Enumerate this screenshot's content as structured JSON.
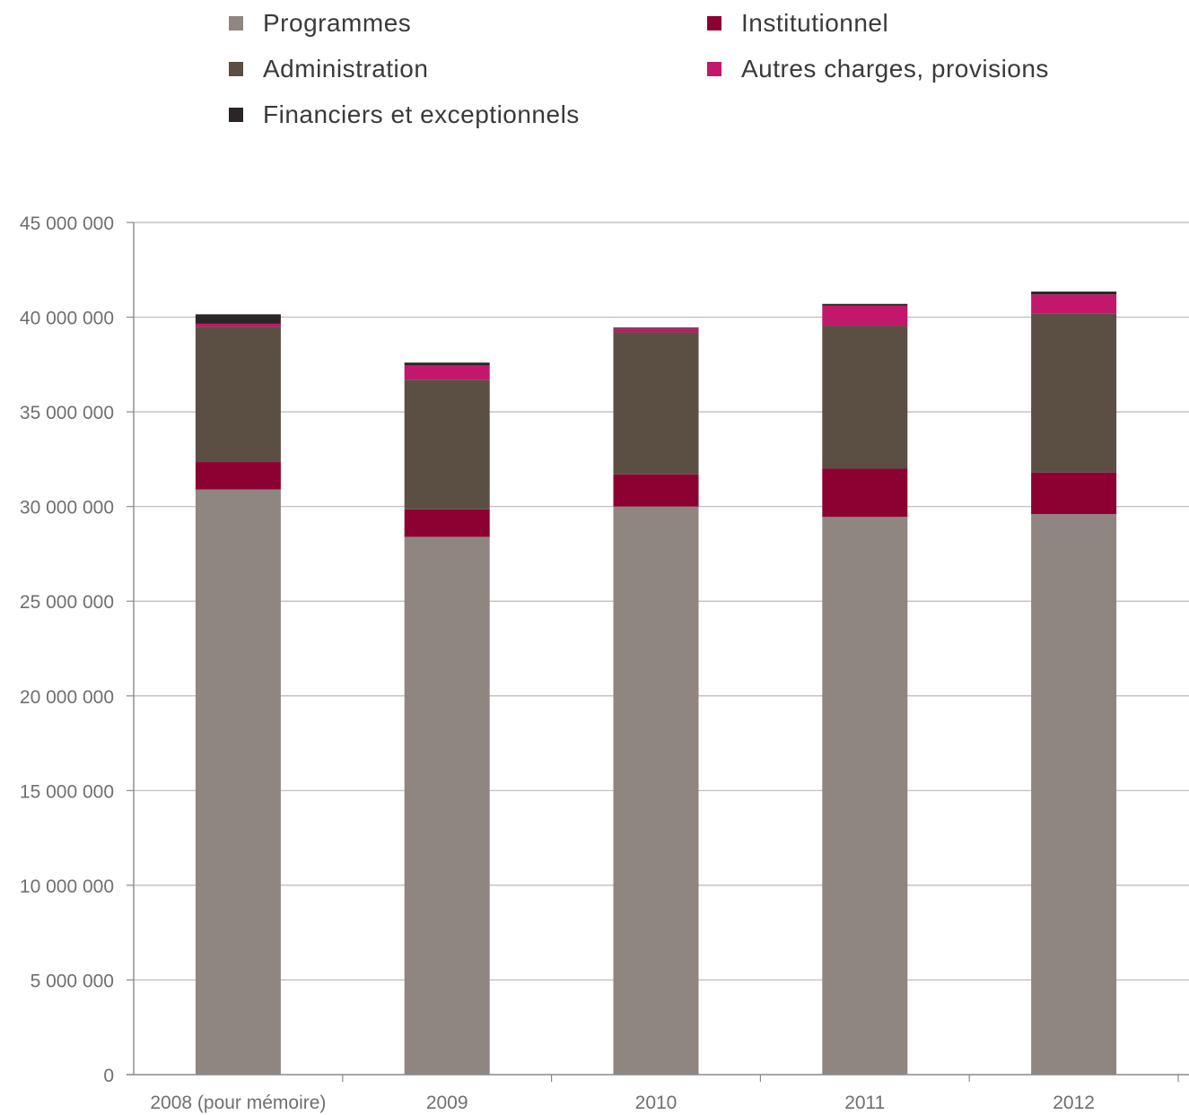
{
  "chart_data": {
    "type": "bar",
    "stacked": true,
    "title": "",
    "xlabel": "",
    "ylabel": "",
    "ylim": [
      0,
      45000000
    ],
    "yticks": [
      0,
      5000000,
      10000000,
      15000000,
      20000000,
      25000000,
      30000000,
      35000000,
      40000000,
      45000000
    ],
    "ytick_labels": [
      "0",
      "5 000 000",
      "10 000 000",
      "15 000 000",
      "20 000 000",
      "25 000 000",
      "30 000 000",
      "35 000 000",
      "40 000 000",
      "45 000 000"
    ],
    "grid": true,
    "legend_position": "top",
    "categories": [
      "2008 (pour mémoire)",
      "2009",
      "2010",
      "2011",
      "2012"
    ],
    "series": [
      {
        "name": "Programmes",
        "color": "#8f8682",
        "values": [
          30900000,
          28400000,
          30000000,
          29450000,
          29600000
        ]
      },
      {
        "name": "Institutionnel",
        "color": "#8c0032",
        "values": [
          1450000,
          1450000,
          1700000,
          2550000,
          2200000
        ]
      },
      {
        "name": "Administration",
        "color": "#5b4e43",
        "values": [
          7150000,
          6850000,
          7500000,
          7550000,
          8400000
        ]
      },
      {
        "name": "Autres charges, provisions",
        "color": "#c2176b",
        "values": [
          150000,
          750000,
          200000,
          1050000,
          1000000
        ]
      },
      {
        "name": "Financiers et exceptionnels",
        "color": "#2b2625",
        "values": [
          500000,
          150000,
          50000,
          100000,
          150000
        ]
      }
    ]
  },
  "legend": {
    "items": [
      {
        "label": "Programmes",
        "color": "#8f8682"
      },
      {
        "label": "Institutionnel",
        "color": "#8c0032"
      },
      {
        "label": "Administration",
        "color": "#5b4e43"
      },
      {
        "label": "Autres charges, provisions",
        "color": "#c2176b"
      },
      {
        "label": "Financiers et exceptionnels",
        "color": "#2b2625"
      }
    ]
  }
}
